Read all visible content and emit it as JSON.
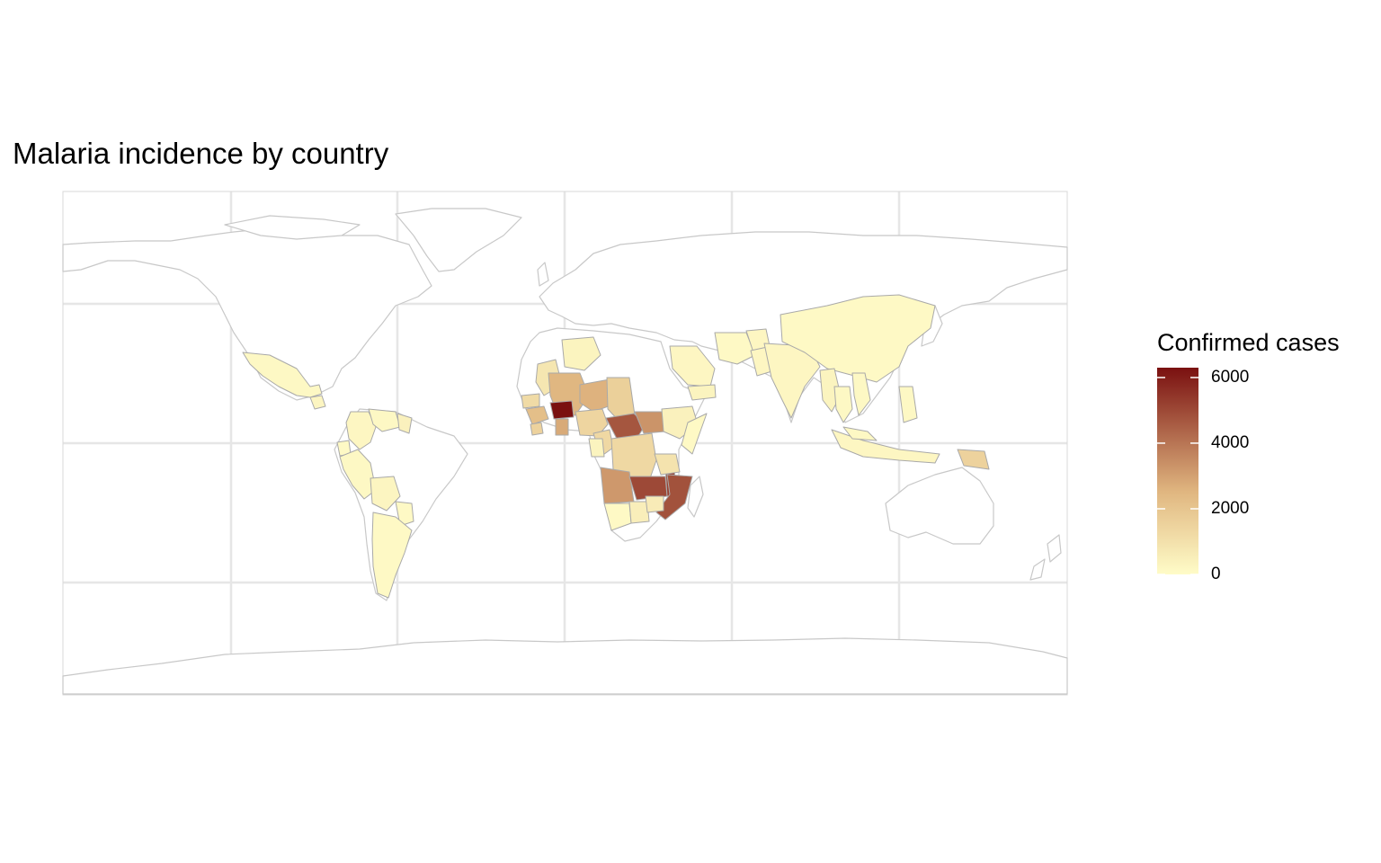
{
  "title": "Malaria incidence by country",
  "legend": {
    "title": "Confirmed cases",
    "min": 0,
    "max": 6300,
    "ticks": [
      {
        "value": 6000,
        "label": "6000"
      },
      {
        "value": 4000,
        "label": "4000"
      },
      {
        "value": 2000,
        "label": "2000"
      },
      {
        "value": 0,
        "label": "0"
      }
    ],
    "color_low": "#fffcc8",
    "color_mid": "#e0b680",
    "color_high": "#7a1010"
  },
  "colors": {
    "land_outline": "#c8c8c8",
    "country_border": "#a9a9a9",
    "gridline": "#e6e6e6",
    "no_data": "#ffffff"
  },
  "chart_data": {
    "type": "heatmap",
    "countries": [
      {
        "name": "Mexico",
        "value": 150
      },
      {
        "name": "Guatemala",
        "value": 250
      },
      {
        "name": "Colombia",
        "value": 200
      },
      {
        "name": "Venezuela",
        "value": 150
      },
      {
        "name": "Guyana",
        "value": 400
      },
      {
        "name": "Ecuador",
        "value": 100
      },
      {
        "name": "Peru",
        "value": 150
      },
      {
        "name": "Bolivia",
        "value": 250
      },
      {
        "name": "Paraguay",
        "value": 100
      },
      {
        "name": "Argentina",
        "value": 100
      },
      {
        "name": "Algeria",
        "value": 300
      },
      {
        "name": "Mauritania",
        "value": 800
      },
      {
        "name": "Mali",
        "value": 2500
      },
      {
        "name": "Niger",
        "value": 2600
      },
      {
        "name": "Chad",
        "value": 1600
      },
      {
        "name": "Senegal",
        "value": 1200
      },
      {
        "name": "Guinea",
        "value": 2200
      },
      {
        "name": "Sierra Leone",
        "value": 1500
      },
      {
        "name": "Burkina Faso",
        "value": 6300
      },
      {
        "name": "Ghana",
        "value": 2800
      },
      {
        "name": "Nigeria",
        "value": 1400
      },
      {
        "name": "Cameroon",
        "value": 1300
      },
      {
        "name": "Central African Republic",
        "value": 4700
      },
      {
        "name": "South Sudan",
        "value": 3300
      },
      {
        "name": "Ethiopia",
        "value": 400
      },
      {
        "name": "Somalia",
        "value": 100
      },
      {
        "name": "Gabon",
        "value": 300
      },
      {
        "name": "DR Congo",
        "value": 1300
      },
      {
        "name": "Angola",
        "value": 3200
      },
      {
        "name": "Zambia",
        "value": 5000
      },
      {
        "name": "Malawi",
        "value": 5200
      },
      {
        "name": "Mozambique",
        "value": 4800
      },
      {
        "name": "Tanzania",
        "value": 900
      },
      {
        "name": "Namibia",
        "value": 100
      },
      {
        "name": "Botswana",
        "value": 500
      },
      {
        "name": "Zimbabwe",
        "value": 600
      },
      {
        "name": "Saudi Arabia",
        "value": 200
      },
      {
        "name": "Yemen",
        "value": 300
      },
      {
        "name": "Iran",
        "value": 100
      },
      {
        "name": "Afghanistan",
        "value": 200
      },
      {
        "name": "Pakistan",
        "value": 200
      },
      {
        "name": "India",
        "value": 200
      },
      {
        "name": "China",
        "value": 100
      },
      {
        "name": "Myanmar",
        "value": 300
      },
      {
        "name": "Thailand",
        "value": 150
      },
      {
        "name": "Vietnam",
        "value": 150
      },
      {
        "name": "Philippines",
        "value": 150
      },
      {
        "name": "Indonesia",
        "value": 200
      },
      {
        "name": "Malaysia",
        "value": 150
      },
      {
        "name": "Papua New Guinea",
        "value": 1500
      }
    ]
  }
}
